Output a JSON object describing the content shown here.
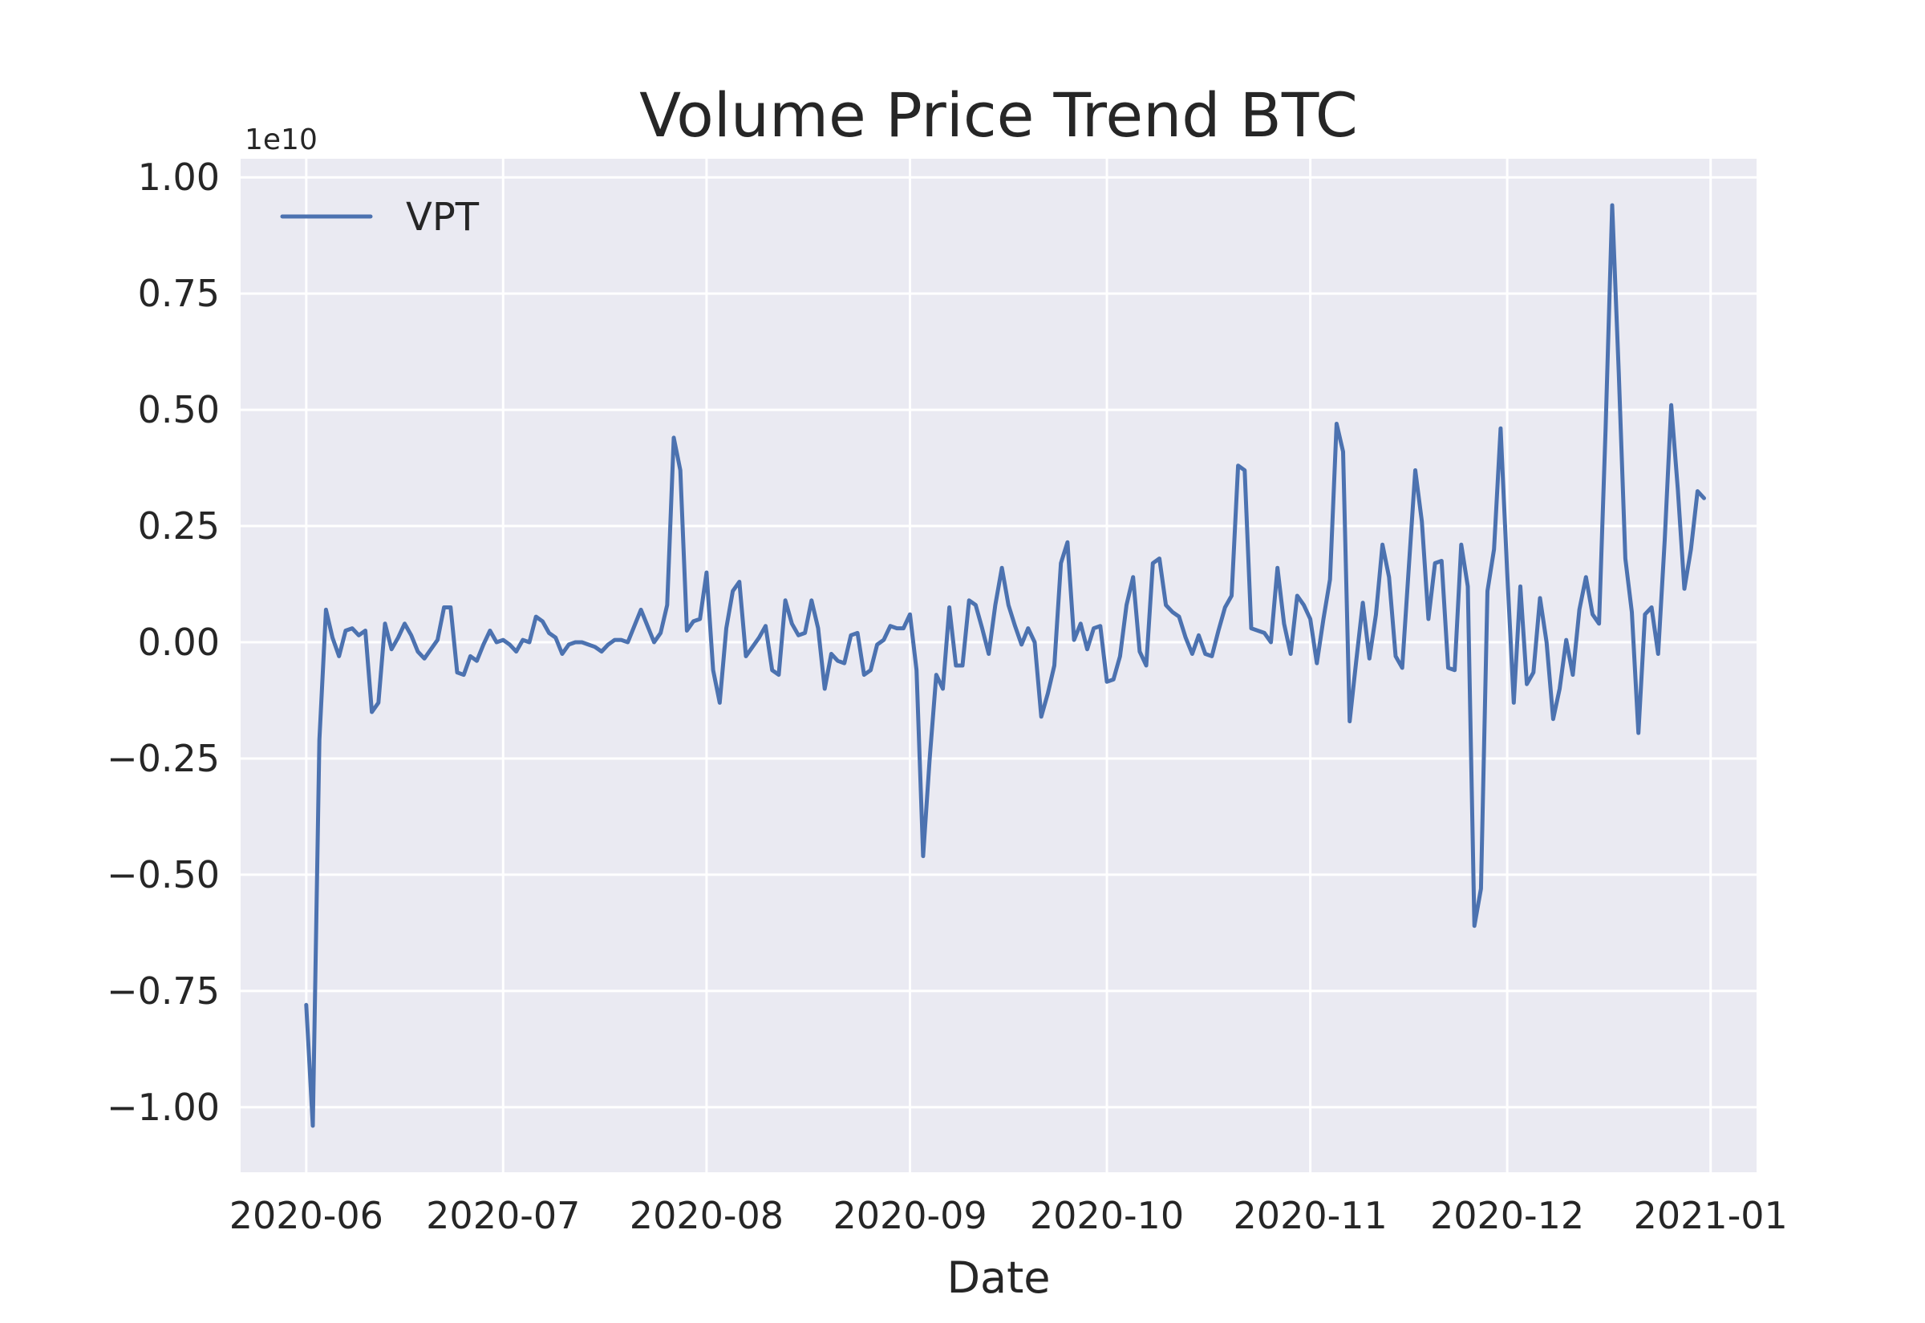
{
  "chart_data": {
    "type": "line",
    "title": "Volume Price Trend BTC",
    "xlabel": "Date",
    "ylabel": "",
    "y_offset_label": "1e10",
    "y_scale": 10000000000,
    "xlim": [
      "2020-05-22",
      "2021-01-08"
    ],
    "ylim": [
      -1.14,
      1.04
    ],
    "x_ticks": [
      "2020-06-01",
      "2020-07-01",
      "2020-08-01",
      "2020-09-01",
      "2020-10-01",
      "2020-11-01",
      "2020-12-01",
      "2021-01-01"
    ],
    "x_tick_labels": [
      "2020-06",
      "2020-07",
      "2020-08",
      "2020-09",
      "2020-10",
      "2020-11",
      "2020-12",
      "2021-01"
    ],
    "y_ticks": [
      -1.0,
      -0.75,
      -0.5,
      -0.25,
      0.0,
      0.25,
      0.5,
      0.75,
      1.0
    ],
    "y_tick_labels": [
      "−1.00",
      "−0.75",
      "−0.50",
      "−0.25",
      "0.00",
      "0.25",
      "0.50",
      "0.75",
      "1.00"
    ],
    "grid": true,
    "legend": "upper-left",
    "series": [
      {
        "name": "VPT",
        "color": "#4c72b0",
        "x": [
          "2020-06-01",
          "2020-06-02",
          "2020-06-03",
          "2020-06-04",
          "2020-06-05",
          "2020-06-06",
          "2020-06-07",
          "2020-06-08",
          "2020-06-09",
          "2020-06-10",
          "2020-06-11",
          "2020-06-12",
          "2020-06-13",
          "2020-06-14",
          "2020-06-15",
          "2020-06-16",
          "2020-06-17",
          "2020-06-18",
          "2020-06-19",
          "2020-06-20",
          "2020-06-21",
          "2020-06-22",
          "2020-06-23",
          "2020-06-24",
          "2020-06-25",
          "2020-06-26",
          "2020-06-27",
          "2020-06-28",
          "2020-06-29",
          "2020-06-30",
          "2020-07-01",
          "2020-07-02",
          "2020-07-03",
          "2020-07-04",
          "2020-07-05",
          "2020-07-06",
          "2020-07-07",
          "2020-07-08",
          "2020-07-09",
          "2020-07-10",
          "2020-07-11",
          "2020-07-12",
          "2020-07-13",
          "2020-07-14",
          "2020-07-15",
          "2020-07-16",
          "2020-07-17",
          "2020-07-18",
          "2020-07-19",
          "2020-07-20",
          "2020-07-21",
          "2020-07-22",
          "2020-07-23",
          "2020-07-24",
          "2020-07-25",
          "2020-07-26",
          "2020-07-27",
          "2020-07-28",
          "2020-07-29",
          "2020-07-30",
          "2020-07-31",
          "2020-08-01",
          "2020-08-02",
          "2020-08-03",
          "2020-08-04",
          "2020-08-05",
          "2020-08-06",
          "2020-08-07",
          "2020-08-08",
          "2020-08-09",
          "2020-08-10",
          "2020-08-11",
          "2020-08-12",
          "2020-08-13",
          "2020-08-14",
          "2020-08-15",
          "2020-08-16",
          "2020-08-17",
          "2020-08-18",
          "2020-08-19",
          "2020-08-20",
          "2020-08-21",
          "2020-08-22",
          "2020-08-23",
          "2020-08-24",
          "2020-08-25",
          "2020-08-26",
          "2020-08-27",
          "2020-08-28",
          "2020-08-29",
          "2020-08-30",
          "2020-08-31",
          "2020-09-01",
          "2020-09-02",
          "2020-09-03",
          "2020-09-04",
          "2020-09-05",
          "2020-09-06",
          "2020-09-07",
          "2020-09-08",
          "2020-09-09",
          "2020-09-10",
          "2020-09-11",
          "2020-09-12",
          "2020-09-13",
          "2020-09-14",
          "2020-09-15",
          "2020-09-16",
          "2020-09-17",
          "2020-09-18",
          "2020-09-19",
          "2020-09-20",
          "2020-09-21",
          "2020-09-22",
          "2020-09-23",
          "2020-09-24",
          "2020-09-25",
          "2020-09-26",
          "2020-09-27",
          "2020-09-28",
          "2020-09-29",
          "2020-09-30",
          "2020-10-01",
          "2020-10-02",
          "2020-10-03",
          "2020-10-04",
          "2020-10-05",
          "2020-10-06",
          "2020-10-07",
          "2020-10-08",
          "2020-10-09",
          "2020-10-10",
          "2020-10-11",
          "2020-10-12",
          "2020-10-13",
          "2020-10-14",
          "2020-10-15",
          "2020-10-16",
          "2020-10-17",
          "2020-10-18",
          "2020-10-19",
          "2020-10-20",
          "2020-10-21",
          "2020-10-22",
          "2020-10-23",
          "2020-10-24",
          "2020-10-25",
          "2020-10-26",
          "2020-10-27",
          "2020-10-28",
          "2020-10-29",
          "2020-10-30",
          "2020-10-31",
          "2020-11-01",
          "2020-11-02",
          "2020-11-03",
          "2020-11-04",
          "2020-11-05",
          "2020-11-06",
          "2020-11-07",
          "2020-11-08",
          "2020-11-09",
          "2020-11-10",
          "2020-11-11",
          "2020-11-12",
          "2020-11-13",
          "2020-11-14",
          "2020-11-15",
          "2020-11-16",
          "2020-11-17",
          "2020-11-18",
          "2020-11-19",
          "2020-11-20",
          "2020-11-21",
          "2020-11-22",
          "2020-11-23",
          "2020-11-24",
          "2020-11-25",
          "2020-11-26",
          "2020-11-27",
          "2020-11-28",
          "2020-11-29",
          "2020-11-30",
          "2020-12-01",
          "2020-12-02",
          "2020-12-03",
          "2020-12-04",
          "2020-12-05",
          "2020-12-06",
          "2020-12-07",
          "2020-12-08",
          "2020-12-09",
          "2020-12-10",
          "2020-12-11",
          "2020-12-12",
          "2020-12-13",
          "2020-12-14",
          "2020-12-15",
          "2020-12-16",
          "2020-12-17",
          "2020-12-18",
          "2020-12-19",
          "2020-12-20",
          "2020-12-21",
          "2020-12-22",
          "2020-12-23",
          "2020-12-24",
          "2020-12-25",
          "2020-12-26",
          "2020-12-27",
          "2020-12-28",
          "2020-12-29",
          "2020-12-30",
          "2020-12-31"
        ],
        "values": [
          -0.78,
          -1.04,
          -0.21,
          0.07,
          0.01,
          -0.03,
          0.025,
          0.03,
          0.015,
          0.025,
          -0.15,
          -0.13,
          0.04,
          -0.015,
          0.01,
          0.04,
          0.015,
          -0.02,
          -0.035,
          -0.015,
          0.005,
          0.075,
          0.075,
          -0.065,
          -0.07,
          -0.03,
          -0.04,
          -0.005,
          0.025,
          0.0,
          0.005,
          -0.005,
          -0.02,
          0.005,
          0.0,
          0.055,
          0.045,
          0.02,
          0.01,
          -0.025,
          -0.005,
          0.0,
          0.0,
          -0.005,
          -0.01,
          -0.02,
          -0.005,
          0.005,
          0.005,
          0.0,
          0.035,
          0.07,
          0.035,
          0.0,
          0.02,
          0.08,
          0.44,
          0.37,
          0.025,
          0.045,
          0.05,
          0.15,
          -0.06,
          -0.13,
          0.03,
          0.11,
          0.13,
          -0.03,
          -0.01,
          0.01,
          0.035,
          -0.06,
          -0.07,
          0.09,
          0.04,
          0.015,
          0.02,
          0.09,
          0.03,
          -0.1,
          -0.025,
          -0.04,
          -0.045,
          0.015,
          0.02,
          -0.07,
          -0.06,
          -0.005,
          0.005,
          0.035,
          0.03,
          0.03,
          0.06,
          -0.06,
          -0.46,
          -0.25,
          -0.07,
          -0.1,
          0.075,
          -0.05,
          -0.05,
          0.09,
          0.08,
          0.03,
          -0.025,
          0.08,
          0.16,
          0.08,
          0.035,
          -0.005,
          0.03,
          0.0,
          -0.16,
          -0.11,
          -0.05,
          0.17,
          0.215,
          0.005,
          0.04,
          -0.015,
          0.03,
          0.035,
          -0.085,
          -0.08,
          -0.03,
          0.08,
          0.14,
          -0.02,
          -0.05,
          0.17,
          0.18,
          0.08,
          0.065,
          0.055,
          0.01,
          -0.025,
          0.015,
          -0.025,
          -0.03,
          0.025,
          0.075,
          0.1,
          0.38,
          0.37,
          0.03,
          0.025,
          0.02,
          0.0,
          0.16,
          0.04,
          -0.025,
          0.1,
          0.08,
          0.05,
          -0.045,
          0.05,
          0.135,
          0.47,
          0.41,
          -0.17,
          -0.04,
          0.085,
          -0.035,
          0.06,
          0.21,
          0.14,
          -0.03,
          -0.055,
          0.16,
          0.37,
          0.26,
          0.05,
          0.17,
          0.175,
          -0.055,
          -0.06,
          0.21,
          0.12,
          -0.61,
          -0.53,
          0.11,
          0.2,
          0.46,
          0.15,
          -0.13,
          0.12,
          -0.09,
          -0.065,
          0.095,
          0.0,
          -0.165,
          -0.1,
          0.005,
          -0.07,
          0.07,
          0.14,
          0.06,
          0.04,
          0.46,
          0.94,
          0.58,
          0.18,
          0.065,
          -0.195,
          0.06,
          0.075,
          -0.025,
          0.22,
          0.51,
          0.33,
          0.115,
          0.2,
          0.325,
          0.31
        ]
      }
    ]
  }
}
